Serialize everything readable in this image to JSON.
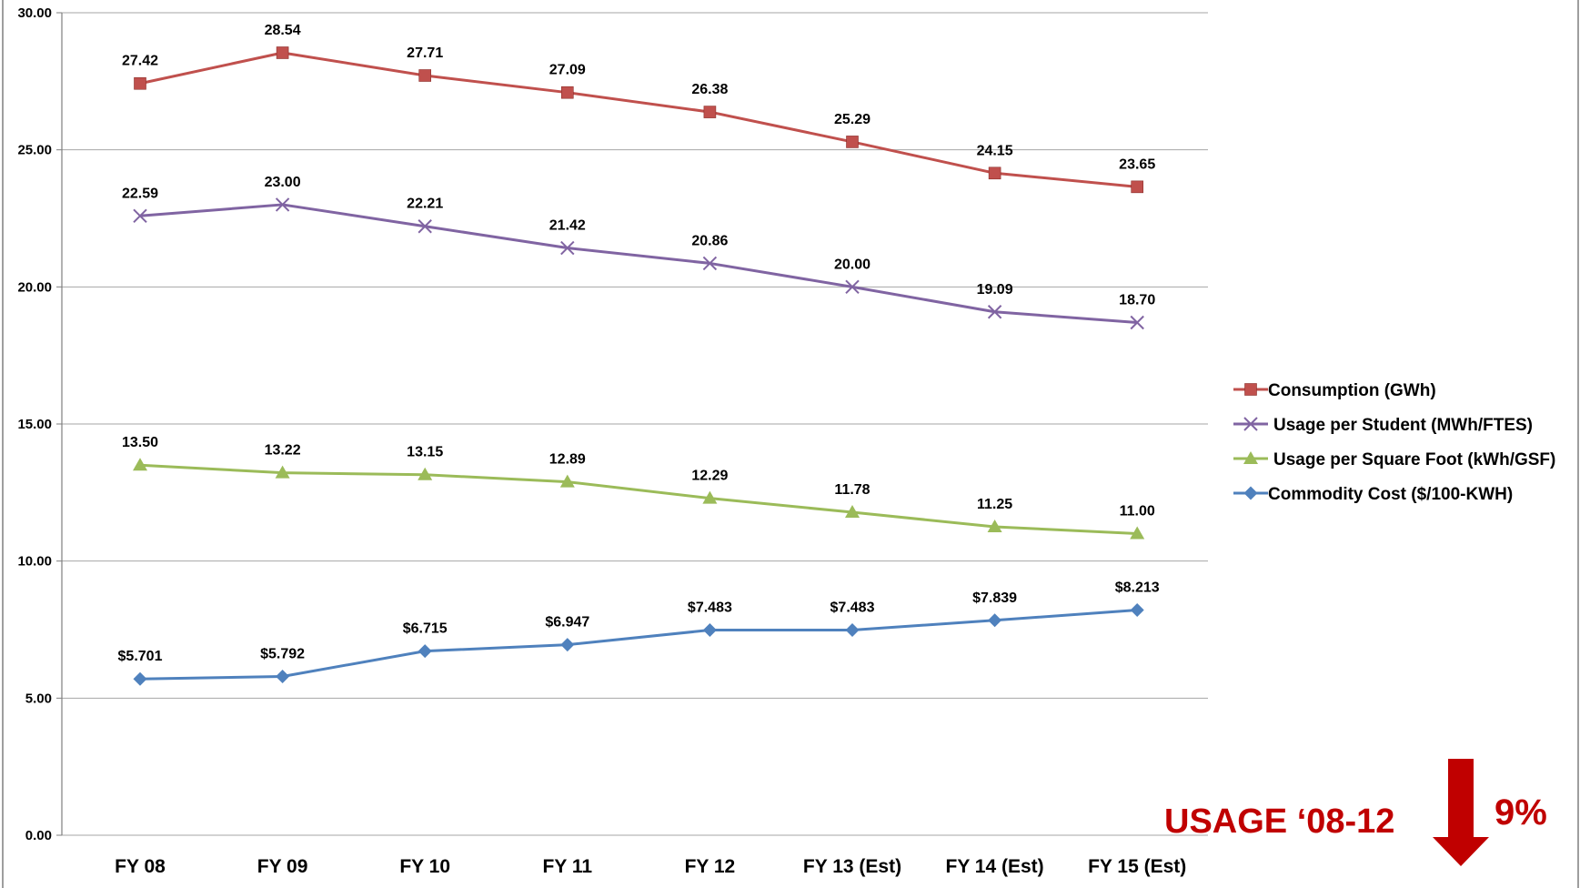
{
  "chart_data": {
    "type": "line",
    "title": "",
    "xlabel": "",
    "ylabel": "",
    "categories": [
      "FY 08",
      "FY 09",
      "FY 10",
      "FY 11",
      "FY 12",
      "FY 13 (Est)",
      "FY 14  (Est)",
      "FY 15 (Est)"
    ],
    "ylim": [
      0,
      30
    ],
    "y_ticks": [
      0,
      5,
      10,
      15,
      20,
      25,
      30
    ],
    "y_tick_labels": [
      "0.00",
      "5.00",
      "10.00",
      "15.00",
      "20.00",
      "25.00",
      "30.00"
    ],
    "grid": true,
    "legend_position": "right",
    "series": [
      {
        "name": "Consumption (GWh)",
        "color": "#c0504d",
        "marker": "square",
        "values": [
          27.42,
          28.54,
          27.71,
          27.09,
          26.38,
          25.29,
          24.15,
          23.65
        ],
        "labels": [
          "27.42",
          "28.54",
          "27.71",
          "27.09",
          "26.38",
          "25.29",
          "24.15",
          "23.65"
        ]
      },
      {
        "name": "Usage per Student (MWh/FTES)",
        "color": "#8064a2",
        "marker": "x",
        "values": [
          22.59,
          23.0,
          22.21,
          21.42,
          20.86,
          20.0,
          19.09,
          18.7
        ],
        "labels": [
          "22.59",
          "23.00",
          "22.21",
          "21.42",
          "20.86",
          "20.00",
          "19.09",
          "18.70"
        ]
      },
      {
        "name": "Usage per Square Foot (kWh/GSF)",
        "color": "#9bbb59",
        "marker": "triangle",
        "values": [
          13.5,
          13.22,
          13.15,
          12.89,
          12.29,
          11.78,
          11.25,
          11.0
        ],
        "labels": [
          "13.50",
          "13.22",
          "13.15",
          "12.89",
          "12.29",
          "11.78",
          "11.25",
          "11.00"
        ]
      },
      {
        "name": "Commodity Cost ($/100-KWH)",
        "color": "#4f81bd",
        "marker": "diamond",
        "values": [
          5.701,
          5.792,
          6.715,
          6.947,
          7.483,
          7.483,
          7.839,
          8.213
        ],
        "labels": [
          "$5.701",
          "$5.792",
          "$6.715",
          "$6.947",
          "$7.483",
          "$7.483",
          "$7.839",
          "$8.213"
        ]
      }
    ],
    "annotations": [
      {
        "text": "USAGE ‘08-12",
        "color": "#c00000"
      },
      {
        "text": "9%",
        "color": "#c00000"
      }
    ]
  }
}
